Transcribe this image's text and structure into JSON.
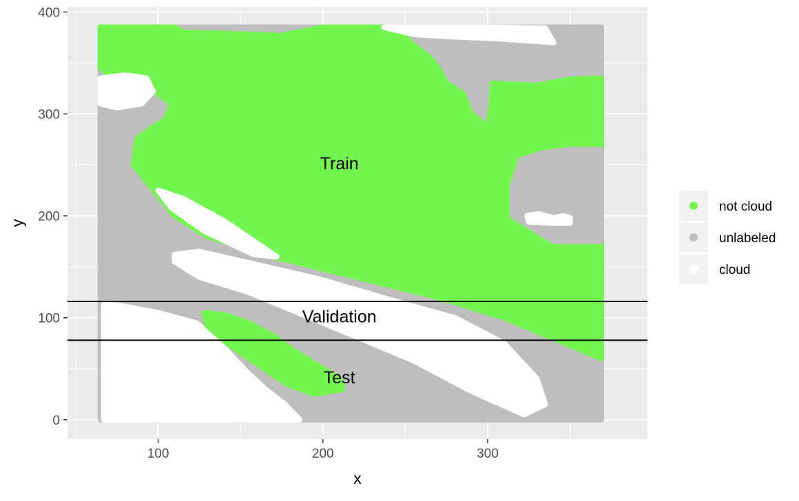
{
  "chart_data": {
    "type": "scatter",
    "title": "",
    "xlabel": "x",
    "ylabel": "y",
    "xlim": [
      45,
      397
    ],
    "ylim": [
      -19,
      405
    ],
    "xticks": [
      100,
      200,
      300
    ],
    "yticks": [
      0,
      100,
      200,
      300,
      400
    ],
    "grid": true,
    "legend": {
      "placement": "right",
      "entries": [
        {
          "label": "not cloud",
          "color": "#72f54e"
        },
        {
          "label": "unlabeled",
          "color": "#bebebe"
        },
        {
          "label": "cloud",
          "color": "#ffffff"
        }
      ]
    },
    "hlines": [
      116,
      78
    ],
    "split_labels": [
      {
        "text": "Train",
        "x": 210,
        "y": 250
      },
      {
        "text": "Validation",
        "x": 210,
        "y": 100
      },
      {
        "text": "Test",
        "x": 210,
        "y": 40
      }
    ],
    "regions": [
      {
        "label": "unlabeled",
        "points": [
          [
            65,
            385
          ],
          [
            369,
            385
          ],
          [
            369,
            0
          ],
          [
            65,
            0
          ]
        ]
      },
      {
        "label": "not cloud",
        "points": [
          [
            65,
            385
          ],
          [
            110,
            385
          ],
          [
            115,
            380
          ],
          [
            175,
            377
          ],
          [
            200,
            385
          ],
          [
            245,
            385
          ],
          [
            253,
            370
          ],
          [
            265,
            355
          ],
          [
            270,
            345
          ],
          [
            275,
            330
          ],
          [
            285,
            320
          ],
          [
            290,
            300
          ],
          [
            300,
            287
          ],
          [
            302,
            305
          ],
          [
            303,
            330
          ],
          [
            330,
            328
          ],
          [
            350,
            334
          ],
          [
            369,
            335
          ],
          [
            369,
            60
          ],
          [
            340,
            80
          ],
          [
            310,
            100
          ],
          [
            270,
            120
          ],
          [
            220,
            140
          ],
          [
            170,
            160
          ],
          [
            130,
            180
          ],
          [
            110,
            200
          ],
          [
            95,
            230
          ],
          [
            85,
            250
          ],
          [
            87,
            275
          ],
          [
            95,
            285
          ],
          [
            105,
            295
          ],
          [
            108,
            310
          ],
          [
            100,
            320
          ],
          [
            80,
            330
          ],
          [
            65,
            345
          ]
        ]
      },
      {
        "label": "unlabeled",
        "points": [
          [
            320,
            255
          ],
          [
            335,
            262
          ],
          [
            350,
            265
          ],
          [
            369,
            265
          ],
          [
            369,
            175
          ],
          [
            340,
            175
          ],
          [
            325,
            190
          ],
          [
            315,
            200
          ],
          [
            315,
            230
          ]
        ]
      },
      {
        "label": "cloud",
        "points": [
          [
            65,
            335
          ],
          [
            80,
            338
          ],
          [
            93,
            335
          ],
          [
            97,
            322
          ],
          [
            90,
            310
          ],
          [
            75,
            306
          ],
          [
            65,
            310
          ]
        ]
      },
      {
        "label": "cloud",
        "points": [
          [
            237,
            385
          ],
          [
            300,
            385
          ],
          [
            335,
            384
          ],
          [
            340,
            370
          ],
          [
            305,
            374
          ],
          [
            275,
            376
          ],
          [
            255,
            378
          ]
        ]
      },
      {
        "label": "cloud",
        "points": [
          [
            100,
            225
          ],
          [
            115,
            217
          ],
          [
            140,
            195
          ],
          [
            160,
            173
          ],
          [
            172,
            160
          ],
          [
            158,
            162
          ],
          [
            128,
            185
          ],
          [
            108,
            208
          ]
        ]
      },
      {
        "label": "cloud",
        "points": [
          [
            110,
            162
          ],
          [
            125,
            165
          ],
          [
            160,
            152
          ],
          [
            200,
            137
          ],
          [
            240,
            118
          ],
          [
            280,
            100
          ],
          [
            310,
            75
          ],
          [
            330,
            40
          ],
          [
            335,
            15
          ],
          [
            322,
            5
          ],
          [
            290,
            28
          ],
          [
            255,
            58
          ],
          [
            215,
            85
          ],
          [
            185,
            105
          ],
          [
            155,
            125
          ],
          [
            125,
            140
          ],
          [
            110,
            155
          ]
        ]
      },
      {
        "label": "cloud",
        "points": [
          [
            324,
            200
          ],
          [
            331,
            202
          ],
          [
            340,
            198
          ],
          [
            346,
            200
          ],
          [
            350,
            198
          ],
          [
            350,
            193
          ],
          [
            340,
            193
          ],
          [
            325,
            194
          ]
        ]
      },
      {
        "label": "cloud",
        "points": [
          [
            67,
            113
          ],
          [
            77,
            112
          ],
          [
            100,
            105
          ],
          [
            123,
            95
          ],
          [
            135,
            80
          ],
          [
            145,
            62
          ],
          [
            155,
            45
          ],
          [
            165,
            30
          ],
          [
            177,
            15
          ],
          [
            186,
            0
          ],
          [
            67,
            0
          ]
        ]
      },
      {
        "label": "not cloud",
        "points": [
          [
            128,
            105
          ],
          [
            140,
            103
          ],
          [
            155,
            95
          ],
          [
            170,
            82
          ],
          [
            180,
            70
          ],
          [
            195,
            55
          ],
          [
            210,
            40
          ],
          [
            212,
            30
          ],
          [
            195,
            25
          ],
          [
            178,
            35
          ],
          [
            160,
            55
          ],
          [
            142,
            75
          ],
          [
            130,
            92
          ]
        ]
      }
    ]
  }
}
